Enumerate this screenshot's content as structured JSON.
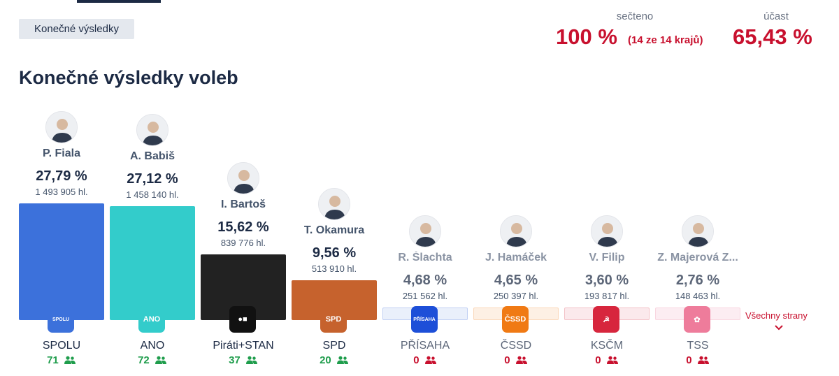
{
  "tab": {
    "label": "Konečné výsledky"
  },
  "stats": {
    "counted_label": "sečteno",
    "counted_value": "100 %",
    "counted_sub": "(14 ze 14 krajů)",
    "turnout_label": "účast",
    "turnout_value": "65,43 %"
  },
  "title": "Konečné výsledky voleb",
  "colors": {
    "accent_red": "#c8102e",
    "seat_green": "#1f9d4c"
  },
  "parties": [
    {
      "leader": "P. Fiala",
      "percent": "27,79 %",
      "votes": "1 493 905 hl.",
      "party": "SPOLU",
      "seats": "71",
      "bar_color": "#3c71db",
      "logo_color": "#3c71db",
      "logo_text": "SPOLU",
      "avatar_icon": "person-icon",
      "seat_icon": "people-icon"
    },
    {
      "leader": "A. Babiš",
      "percent": "27,12 %",
      "votes": "1 458 140 hl.",
      "party": "ANO",
      "seats": "72",
      "bar_color": "#33cccb",
      "logo_color": "#33cccb",
      "logo_text": "ANO",
      "avatar_icon": "person-icon",
      "seat_icon": "people-icon"
    },
    {
      "leader": "I. Bartoš",
      "percent": "15,62 %",
      "votes": "839 776 hl.",
      "party": "Piráti+STAN",
      "seats": "37",
      "bar_color": "#222222",
      "logo_color": "#111111",
      "logo_text": "●■",
      "avatar_icon": "person-icon",
      "seat_icon": "people-icon"
    },
    {
      "leader": "T. Okamura",
      "percent": "9,56 %",
      "votes": "513 910 hl.",
      "party": "SPD",
      "seats": "20",
      "bar_color": "#c6622d",
      "logo_color": "#c6622d",
      "logo_text": "SPD",
      "avatar_icon": "person-icon",
      "seat_icon": "people-icon"
    },
    {
      "leader": "R. Šlachta",
      "percent": "4,68 %",
      "votes": "251 562 hl.",
      "party": "PŘÍSAHA",
      "seats": "0",
      "bar_color": "#eaf0fb",
      "logo_color": "#1d4fd8",
      "logo_text": "PŘÍSAHA",
      "avatar_icon": "person-icon",
      "seat_icon": "people-icon"
    },
    {
      "leader": "J. Hamáček",
      "percent": "4,65 %",
      "votes": "250 397 hl.",
      "party": "ČSSD",
      "seats": "0",
      "bar_color": "#fdf0e4",
      "logo_color": "#f07a14",
      "logo_text": "ČSSD",
      "avatar_icon": "person-icon",
      "seat_icon": "people-icon"
    },
    {
      "leader": "V. Filip",
      "percent": "3,60 %",
      "votes": "193 817 hl.",
      "party": "KSČM",
      "seats": "0",
      "bar_color": "#fbe9ec",
      "logo_color": "#d7263d",
      "logo_text": "☭",
      "avatar_icon": "person-icon",
      "seat_icon": "people-icon"
    },
    {
      "leader": "Z. Majerová Z...",
      "percent": "2,76 %",
      "votes": "148 463 hl.",
      "party": "TSS",
      "seats": "0",
      "bar_color": "#fcedf2",
      "logo_color": "#ee7c9b",
      "logo_text": "✿",
      "avatar_icon": "person-icon",
      "seat_icon": "people-icon"
    }
  ],
  "all_parties_link": "Všechny strany"
}
